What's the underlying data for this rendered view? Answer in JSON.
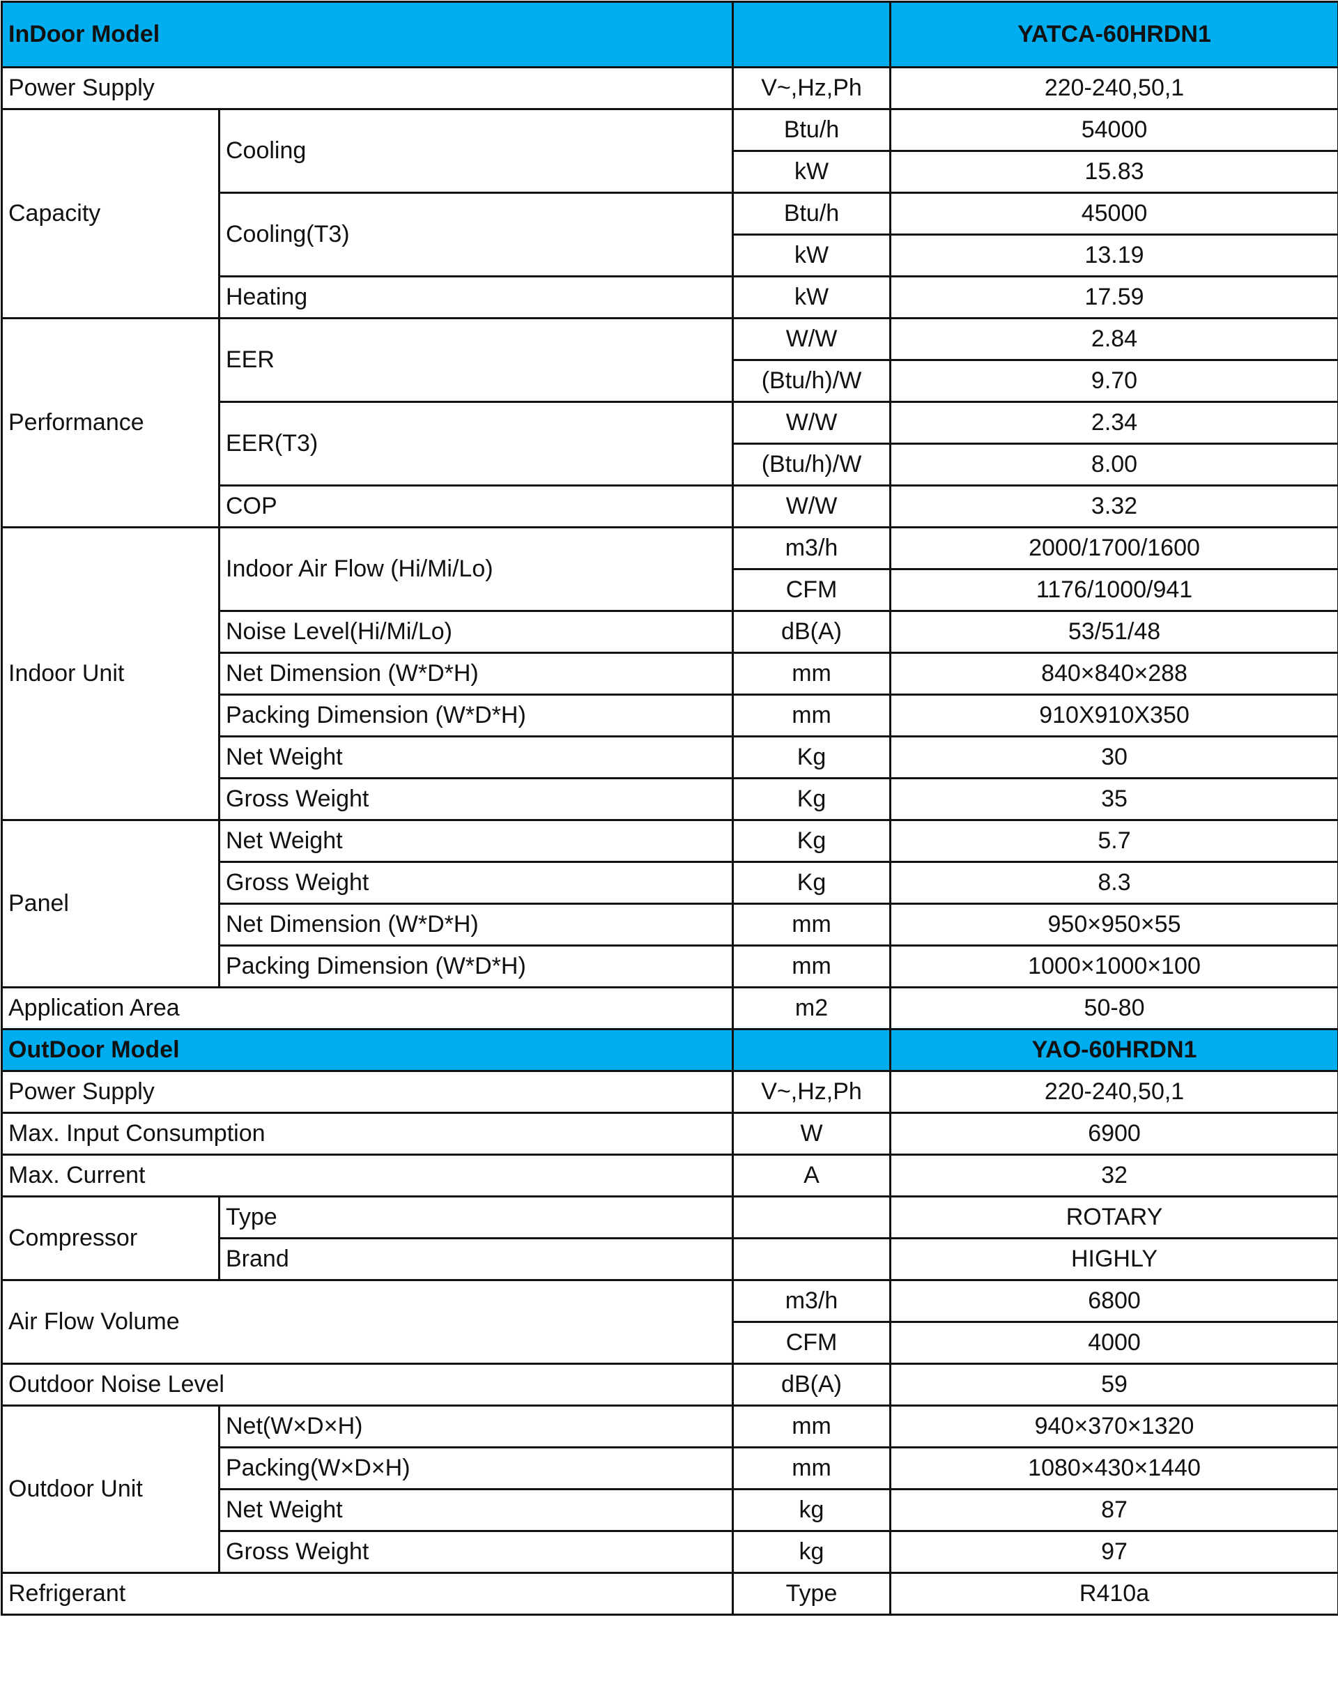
{
  "header_color": "#00AEEF",
  "sections": [
    {
      "header": {
        "label": "InDoor Model",
        "unit": "",
        "model": "YATCA-60HRDN1"
      },
      "entries": [
        {
          "label": "Power Supply",
          "values": [
            {
              "unit": "V~,Hz,Ph",
              "value": "220-240,50,1"
            }
          ]
        },
        {
          "label": "Capacity",
          "subs": [
            {
              "label": "Cooling",
              "values": [
                {
                  "unit": "Btu/h",
                  "value": "54000"
                },
                {
                  "unit": "kW",
                  "value": "15.83"
                }
              ]
            },
            {
              "label": "Cooling(T3)",
              "values": [
                {
                  "unit": "Btu/h",
                  "value": "45000"
                },
                {
                  "unit": "kW",
                  "value": "13.19"
                }
              ]
            },
            {
              "label": "Heating",
              "values": [
                {
                  "unit": "kW",
                  "value": "17.59"
                }
              ]
            }
          ]
        },
        {
          "label": "Performance",
          "subs": [
            {
              "label": "EER",
              "values": [
                {
                  "unit": "W/W",
                  "value": "2.84"
                },
                {
                  "unit": "(Btu/h)/W",
                  "value": "9.70"
                }
              ]
            },
            {
              "label": "EER(T3)",
              "values": [
                {
                  "unit": "W/W",
                  "value": "2.34"
                },
                {
                  "unit": "(Btu/h)/W",
                  "value": "8.00"
                }
              ]
            },
            {
              "label": "COP",
              "values": [
                {
                  "unit": "W/W",
                  "value": "3.32"
                }
              ]
            }
          ]
        },
        {
          "label": "Indoor Unit",
          "subs": [
            {
              "label": "Indoor Air Flow (Hi/Mi/Lo)",
              "values": [
                {
                  "unit": "m3/h",
                  "value": "2000/1700/1600"
                },
                {
                  "unit": "CFM",
                  "value": "1176/1000/941"
                }
              ]
            },
            {
              "label": "Noise Level(Hi/Mi/Lo)",
              "values": [
                {
                  "unit": "dB(A)",
                  "value": "53/51/48"
                }
              ]
            },
            {
              "label": "Net  Dimension (W*D*H)",
              "values": [
                {
                  "unit": "mm",
                  "value": "840×840×288"
                }
              ]
            },
            {
              "label": "Packing  Dimension (W*D*H)",
              "values": [
                {
                  "unit": "mm",
                  "value": "910X910X350"
                }
              ]
            },
            {
              "label": "Net Weight",
              "values": [
                {
                  "unit": "Kg",
                  "value": "30"
                }
              ]
            },
            {
              "label": "Gross Weight",
              "values": [
                {
                  "unit": "Kg",
                  "value": "35"
                }
              ]
            }
          ]
        },
        {
          "label": "Panel",
          "subs": [
            {
              "label": "Net Weight",
              "values": [
                {
                  "unit": "Kg",
                  "value": "5.7"
                }
              ]
            },
            {
              "label": "Gross Weight",
              "values": [
                {
                  "unit": "Kg",
                  "value": "8.3"
                }
              ]
            },
            {
              "label": "Net  Dimension (W*D*H)",
              "values": [
                {
                  "unit": "mm",
                  "value": "950×950×55"
                }
              ]
            },
            {
              "label": "Packing  Dimension (W*D*H)",
              "values": [
                {
                  "unit": "mm",
                  "value": "1000×1000×100"
                }
              ]
            }
          ]
        },
        {
          "label": "Application Area",
          "values": [
            {
              "unit": "m2",
              "value": "50-80"
            }
          ]
        }
      ]
    },
    {
      "header": {
        "label": "OutDoor Model",
        "unit": "",
        "model": "YAO-60HRDN1"
      },
      "entries": [
        {
          "label": "Power Supply",
          "values": [
            {
              "unit": "V~,Hz,Ph",
              "value": "220-240,50,1"
            }
          ]
        },
        {
          "label": "Max. Input Consumption",
          "values": [
            {
              "unit": "W",
              "value": "6900"
            }
          ]
        },
        {
          "label": "Max. Current",
          "values": [
            {
              "unit": "A",
              "value": "32"
            }
          ]
        },
        {
          "label": "Compressor",
          "subs": [
            {
              "label": "Type",
              "values": [
                {
                  "unit": "",
                  "value": "ROTARY"
                }
              ]
            },
            {
              "label": "Brand",
              "values": [
                {
                  "unit": "",
                  "value": "HIGHLY"
                }
              ]
            }
          ]
        },
        {
          "label": "Air Flow Volume",
          "values": [
            {
              "unit": "m3/h",
              "value": "6800"
            },
            {
              "unit": "CFM",
              "value": "4000"
            }
          ]
        },
        {
          "label": "Outdoor Noise Level",
          "values": [
            {
              "unit": "dB(A)",
              "value": "59"
            }
          ]
        },
        {
          "label": "Outdoor Unit",
          "subs": [
            {
              "label": "Net(W×D×H)",
              "values": [
                {
                  "unit": "mm",
                  "value": "940×370×1320"
                }
              ]
            },
            {
              "label": "Packing(W×D×H)",
              "values": [
                {
                  "unit": "mm",
                  "value": "1080×430×1440"
                }
              ]
            },
            {
              "label": "Net Weight",
              "values": [
                {
                  "unit": "kg",
                  "value": "87"
                }
              ]
            },
            {
              "label": "Gross Weight",
              "values": [
                {
                  "unit": "kg",
                  "value": "97"
                }
              ]
            }
          ]
        },
        {
          "label": "Refrigerant",
          "values": [
            {
              "unit": "Type",
              "value": "R410a"
            }
          ]
        }
      ]
    }
  ]
}
